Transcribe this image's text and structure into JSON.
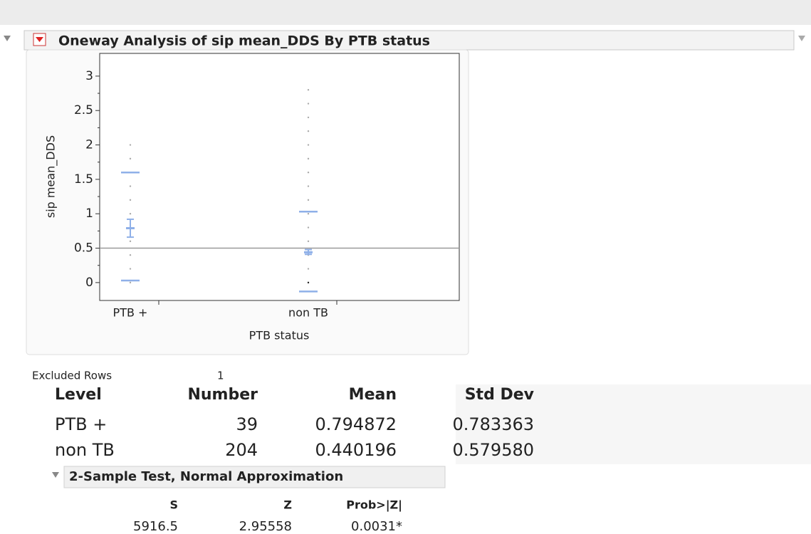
{
  "header": {
    "title": "Oneway Analysis of sip mean_DDS By PTB status"
  },
  "chart_data": {
    "type": "oneway",
    "ylabel": "sip mean_DDS",
    "xlabel": "PTB status",
    "categories": [
      "PTB +",
      "non TB"
    ],
    "ylim": [
      -0.26,
      3.33
    ],
    "yticks": [
      0,
      0.5,
      1,
      1.5,
      2,
      2.5,
      3
    ],
    "ref_line": 0.5,
    "color": "#8fb0e8",
    "points": [
      [
        0,
        0.2,
        0.4,
        0.6,
        0.8,
        1,
        1.2,
        1.4,
        1.6,
        1.8,
        2
      ],
      [
        0,
        0.2,
        0.4,
        0.6,
        0.8,
        1,
        1.2,
        1.4,
        1.6,
        1.8,
        2,
        2.2,
        2.4,
        2.6,
        2.8
      ]
    ],
    "upper_quantile": [
      1.6,
      1.03
    ],
    "lower_quantile": [
      0.03,
      -0.13
    ],
    "means": [
      0.79,
      0.44
    ],
    "mean_ci_low": [
      0.66,
      0.41
    ],
    "mean_ci_high": [
      0.92,
      0.48
    ]
  },
  "excluded": {
    "label": "Excluded Rows",
    "value": "1"
  },
  "table": {
    "headers": [
      "Level",
      "Number",
      "Mean",
      "Std Dev"
    ],
    "rows": [
      [
        "PTB +",
        "39",
        "0.794872",
        "0.783363"
      ],
      [
        "non TB",
        "204",
        "0.440196",
        "0.579580"
      ]
    ]
  },
  "test": {
    "title": "2-Sample Test, Normal Approximation",
    "headers": [
      "S",
      "Z",
      "Prob>|Z|"
    ],
    "values": [
      "5916.5",
      "2.95558",
      "0.0031*"
    ]
  }
}
